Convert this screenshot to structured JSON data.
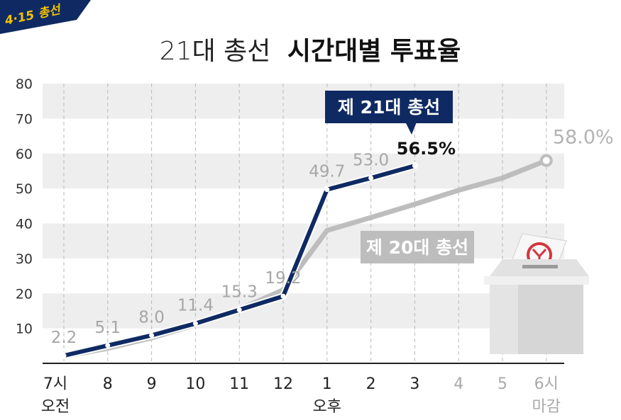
{
  "badge": {
    "text": "4·15 총선"
  },
  "colors": {
    "series21": "#0f2a63",
    "series20": "#bdbdbd",
    "band": "#eeeeee",
    "badge": "#0f2a63",
    "badge_text": "#f2c200"
  },
  "chart_data": {
    "type": "line",
    "title_light": "21대 총선",
    "title_bold": "시간대별 투표율",
    "ylim": [
      0,
      80
    ],
    "yticks": [
      "10",
      "20",
      "30",
      "40",
      "50",
      "60",
      "70",
      "80"
    ],
    "x_labels": [
      {
        "label": "7시",
        "sub": "오전"
      },
      {
        "label": "8",
        "sub": ""
      },
      {
        "label": "9",
        "sub": ""
      },
      {
        "label": "10",
        "sub": ""
      },
      {
        "label": "11",
        "sub": ""
      },
      {
        "label": "12",
        "sub": ""
      },
      {
        "label": "1",
        "sub": "오후"
      },
      {
        "label": "2",
        "sub": ""
      },
      {
        "label": "3",
        "sub": ""
      },
      {
        "label": "4",
        "sub": ""
      },
      {
        "label": "5",
        "sub": ""
      },
      {
        "label": "6시",
        "sub": "마감"
      }
    ],
    "series": [
      {
        "name": "제 21대 총선",
        "values": [
          2.2,
          5.1,
          8.0,
          11.4,
          15.3,
          19.2,
          49.7,
          53.0,
          56.5
        ],
        "labels": [
          "2.2",
          "5.1",
          "8.0",
          "11.4",
          "15.3",
          "19.2",
          "49.7",
          "53.0",
          "56.5%"
        ]
      },
      {
        "name": "제 20대 총선",
        "values": [
          2.0,
          4.3,
          7.3,
          11.0,
          15.4,
          21.0,
          38.0,
          41.7,
          45.5,
          49.5,
          53.0,
          58.0
        ],
        "labels": [
          "",
          "",
          "",
          "",
          "",
          "",
          "",
          "",
          "",
          "",
          "",
          "58.0%"
        ]
      }
    ],
    "grid": "dashed-vertical",
    "bands": "alternating"
  }
}
